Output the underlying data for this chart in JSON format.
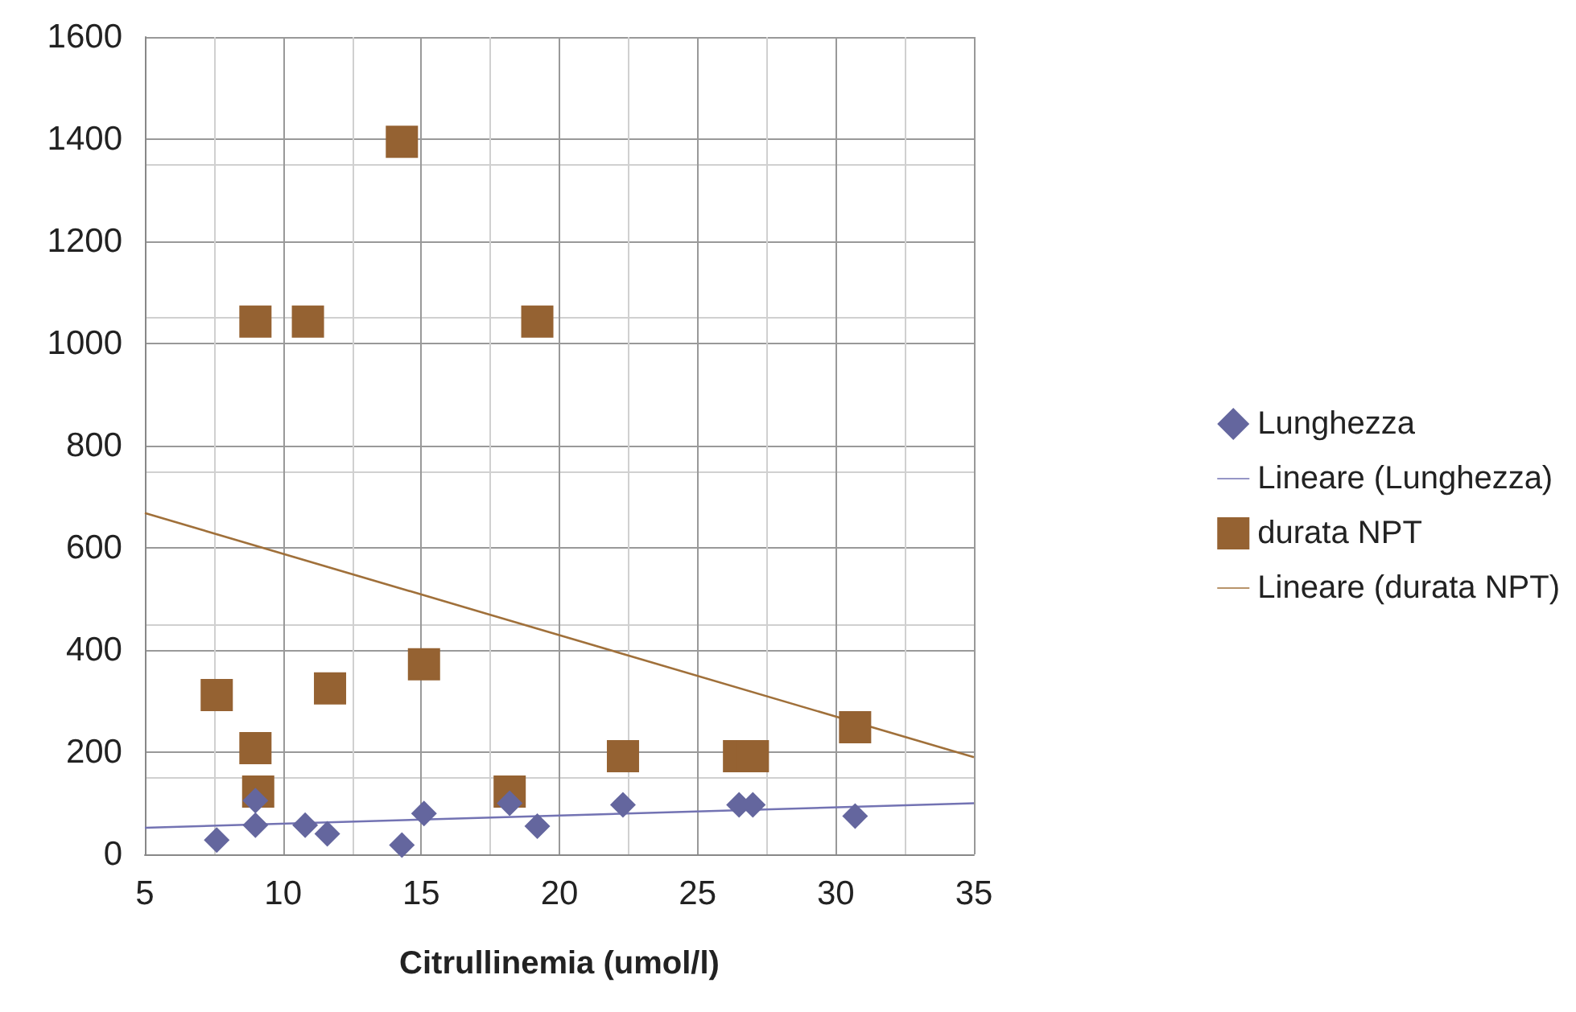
{
  "chart_data": {
    "type": "scatter",
    "xlabel": "Citrullinemia (umol/l)",
    "xlim": [
      5,
      35
    ],
    "xticks": [
      5,
      10,
      15,
      20,
      25,
      30,
      35
    ],
    "ylim": [
      0,
      1600
    ],
    "yticks": [
      0,
      200,
      400,
      600,
      800,
      {
        "value": 1000,
        "label": "1000"
      },
      {
        "value": 1200,
        "label": "1200"
      },
      {
        "value": 1400,
        "label": "1400"
      },
      {
        "value": 1600,
        "label": "1600"
      }
    ],
    "grid": true,
    "legend": "right",
    "series": [
      {
        "name": "Lunghezza",
        "marker": "diamond",
        "color": "#64669e",
        "x": [
          7.6,
          9.0,
          9.0,
          10.8,
          11.6,
          14.3,
          15.1,
          18.2,
          19.2,
          22.3,
          26.5,
          27.0,
          30.7
        ],
        "values": [
          28,
          105,
          57,
          57,
          40,
          18,
          80,
          100,
          55,
          97,
          97,
          97,
          75
        ]
      },
      {
        "name": "Lineare (Lunghezza)",
        "type": "line",
        "marker": "none",
        "color": "#7373b3",
        "x": [
          5,
          35
        ],
        "values": [
          52,
          100
        ]
      },
      {
        "name": "durata NPT",
        "marker": "square",
        "color": "#956232",
        "x": [
          7.6,
          9.0,
          9.1,
          9.0,
          10.9,
          14.3,
          11.7,
          15.1,
          18.2,
          19.2,
          22.3,
          26.5,
          27.0,
          30.7
        ],
        "values": [
          312,
          208,
          123,
          1043,
          1043,
          1395,
          325,
          372,
          123,
          1043,
          192,
          192,
          192,
          249
        ]
      },
      {
        "name": "Lineare (durata NPT)",
        "type": "line",
        "marker": "none",
        "color": "#a0703a",
        "x": [
          5,
          35
        ],
        "values": [
          668,
          190
        ]
      }
    ]
  }
}
